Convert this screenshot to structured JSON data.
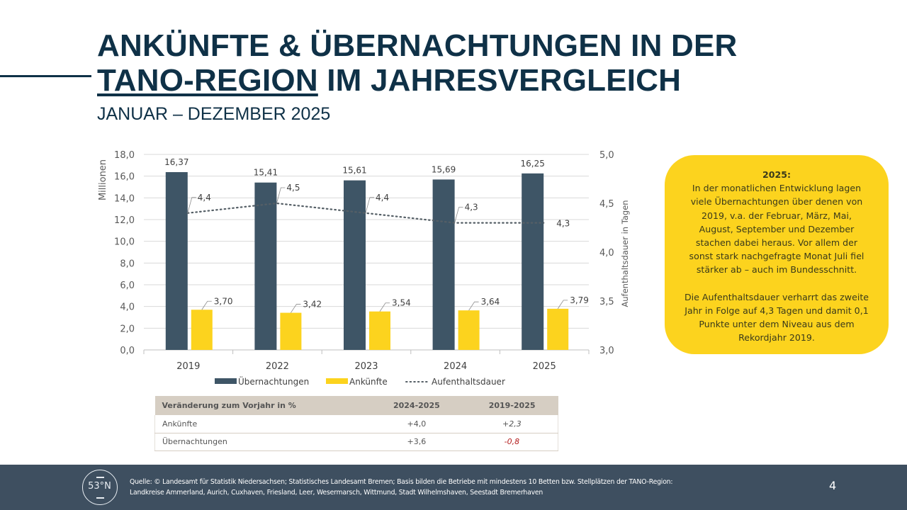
{
  "title": {
    "line1": "ANKÜNFTE & ÜBERNACHTUNGEN IN DER",
    "line2_underlined": "TANO-REGION",
    "line2_rest": " IM JAHRESVERGLEICH",
    "subtitle": "JANUAR – DEZEMBER 2025"
  },
  "chart_data": {
    "type": "bar",
    "categories": [
      "2019",
      "2022",
      "2023",
      "2024",
      "2025"
    ],
    "series": [
      {
        "name": "Übernachtungen",
        "kind": "bar",
        "axis": "left",
        "color": "#3e5566",
        "values": [
          16.37,
          15.41,
          15.61,
          15.69,
          16.25
        ],
        "labels": [
          "16,37",
          "15,41",
          "15,61",
          "15,69",
          "16,25"
        ]
      },
      {
        "name": "Ankünfte",
        "kind": "bar",
        "axis": "left",
        "color": "#fcd31e",
        "values": [
          3.7,
          3.42,
          3.54,
          3.64,
          3.79
        ],
        "labels": [
          "3,70",
          "3,42",
          "3,54",
          "3,64",
          "3,79"
        ]
      },
      {
        "name": "Aufenthaltsdauer",
        "kind": "line-dotted",
        "axis": "right",
        "color": "#555f66",
        "values": [
          4.4,
          4.5,
          4.4,
          4.3,
          4.3
        ],
        "labels": [
          "4,4",
          "4,5",
          "4,4",
          "4,3",
          "4,3"
        ]
      }
    ],
    "ylabel": "Millionen",
    "y2label": "Aufenthaltsdauer in Tagen",
    "ylim": [
      0,
      18
    ],
    "y2lim": [
      3.0,
      5.0
    ],
    "yticks": [
      "0,0",
      "2,0",
      "4,0",
      "6,0",
      "8,0",
      "10,0",
      "12,0",
      "14,0",
      "16,0",
      "18,0"
    ],
    "y2ticks": [
      "3,0",
      "3,5",
      "4,0",
      "4,5",
      "5,0"
    ],
    "grid": true,
    "legend_position": "bottom"
  },
  "table": {
    "headers": [
      "Veränderung zum Vorjahr in %",
      "2024-2025",
      "2019-2025"
    ],
    "rows": [
      {
        "label": "Ankünfte",
        "v1": "+4,0",
        "v2": "+2,3"
      },
      {
        "label": "Übernachtungen",
        "v1": "+3,6",
        "v2": "-0,8"
      }
    ]
  },
  "info_box": {
    "heading": "2025:",
    "paragraph1_lines": [
      "In der monatlichen Entwicklung lagen",
      "viele Übernachtungen über denen von",
      "2019, v.a. der Februar, März, Mai,",
      "August, September und Dezember",
      "stachen dabei heraus. Vor allem der",
      "sonst stark nachgefragte Monat Juli fiel",
      "stärker ab – auch im Bundesschnitt."
    ],
    "paragraph2_lines": [
      "Die Aufenthaltsdauer verharrt das zweite",
      "Jahr in Folge auf 4,3 Tagen und damit 0,1",
      "Punkte unter dem Niveau aus dem",
      "Rekordjahr 2019."
    ]
  },
  "footer": {
    "logo_text": "53°N",
    "source_line1": "Quelle: © Landesamt für Statistik Niedersachsen; Statistisches Landesamt Bremen; Basis bilden die Betriebe mit mindestens 10 Betten bzw. Stellplätzen der TANO-Region:",
    "source_line2": "Landkreise Ammerland, Aurich, Cuxhaven, Friesland, Leer, Wesermarsch, Wittmund, Stadt Wilhelmshaven, Seestadt Bremerhaven",
    "page_number": "4"
  }
}
